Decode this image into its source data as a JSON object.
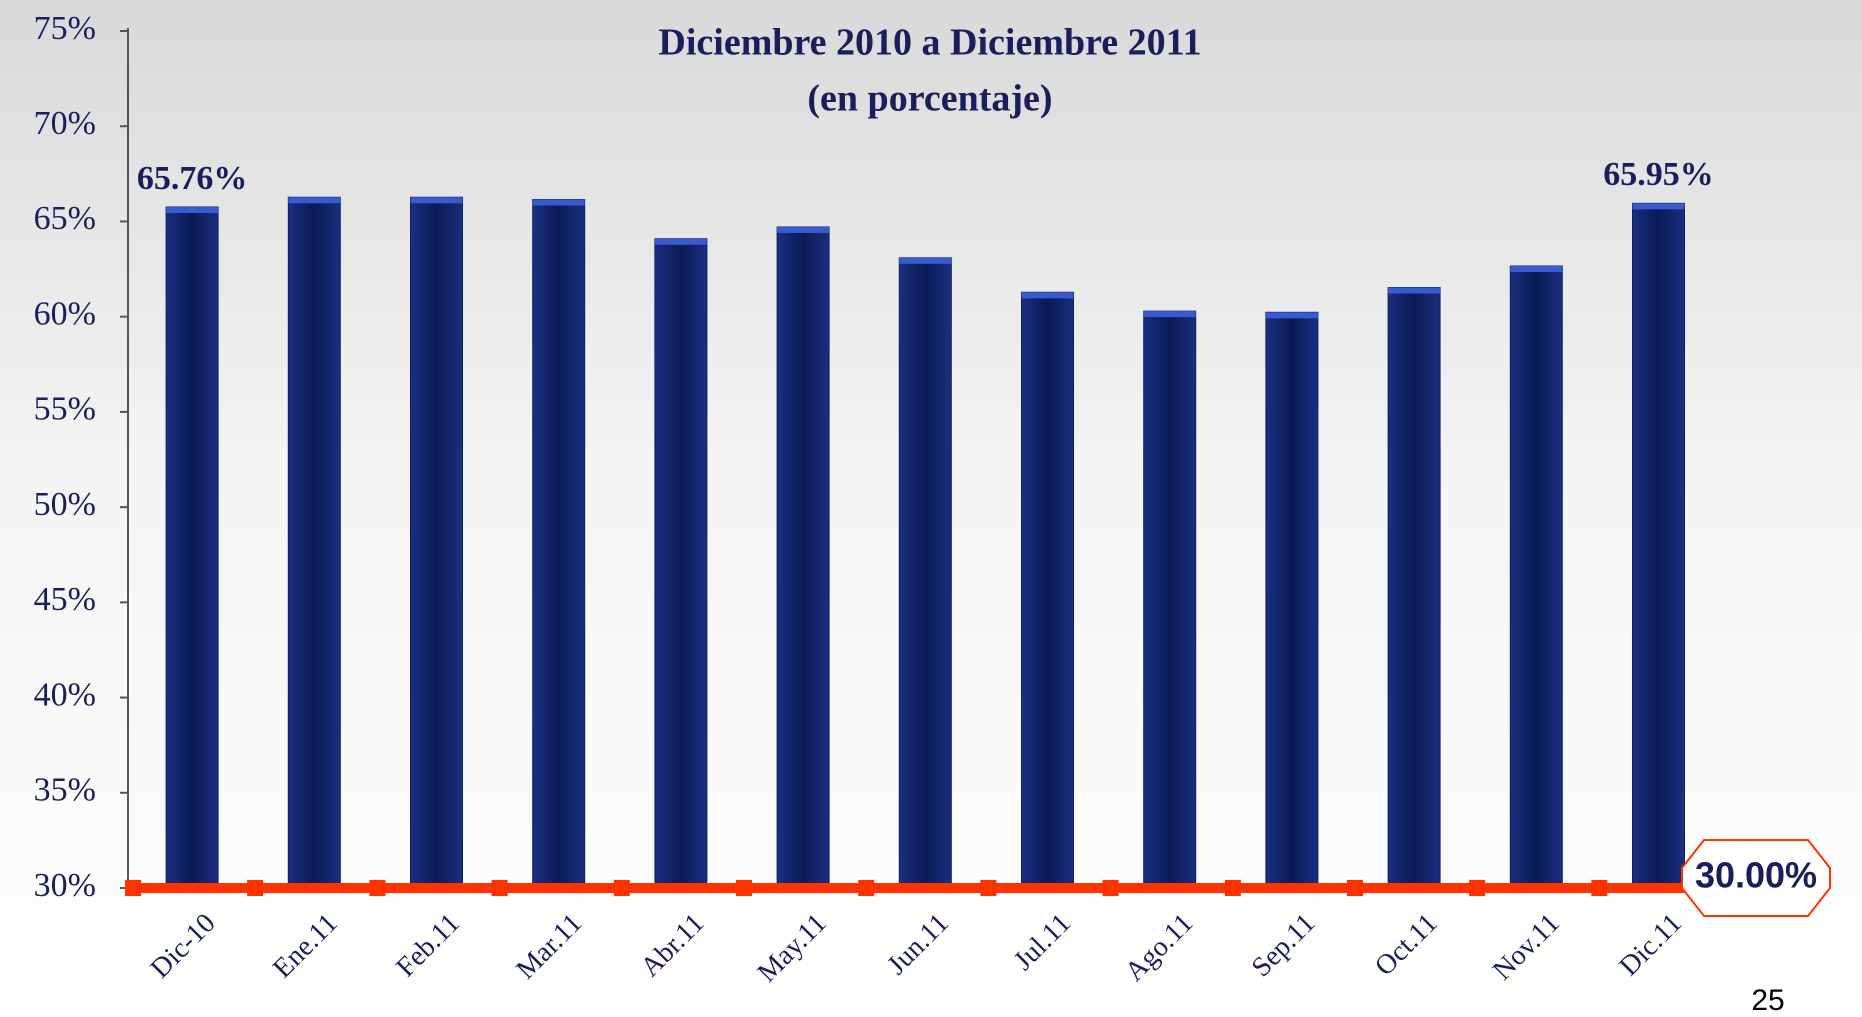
{
  "chart_data": {
    "type": "bar",
    "title": "Diciembre 2010 a Diciembre 2011",
    "subtitle": "(en porcentaje)",
    "categories": [
      "Dic-10",
      "Ene.11",
      "Feb.11",
      "Mar.11",
      "Abr.11",
      "May.11",
      "Jun.11",
      "Jul.11",
      "Ago.11",
      "Sep.11",
      "Oct.11",
      "Nov.11",
      "Dic.11"
    ],
    "values": [
      65.76,
      66.27,
      66.27,
      66.15,
      64.09,
      64.71,
      63.09,
      61.28,
      60.29,
      60.23,
      61.53,
      62.66,
      65.95
    ],
    "value_labels": [
      "65.76%",
      null,
      null,
      null,
      null,
      null,
      null,
      null,
      null,
      null,
      null,
      null,
      "65.95%"
    ],
    "color": "#0d1f5e",
    "ylim": [
      30,
      75
    ],
    "yticks": [
      {
        "value": 30,
        "label": "30%"
      },
      {
        "value": 35,
        "label": "35%"
      },
      {
        "value": 40,
        "label": "40%"
      },
      {
        "value": 45,
        "label": "45%"
      },
      {
        "value": 50,
        "label": "50%"
      },
      {
        "value": 55,
        "label": "55%"
      },
      {
        "value": 60,
        "label": "60%"
      },
      {
        "value": 65,
        "label": "65%"
      },
      {
        "value": 70,
        "label": "70%"
      },
      {
        "value": 75,
        "label": "75%"
      }
    ],
    "reference_line": {
      "value": 30,
      "label": "30.00%",
      "color": "#ff3300"
    },
    "page_number": "25"
  }
}
